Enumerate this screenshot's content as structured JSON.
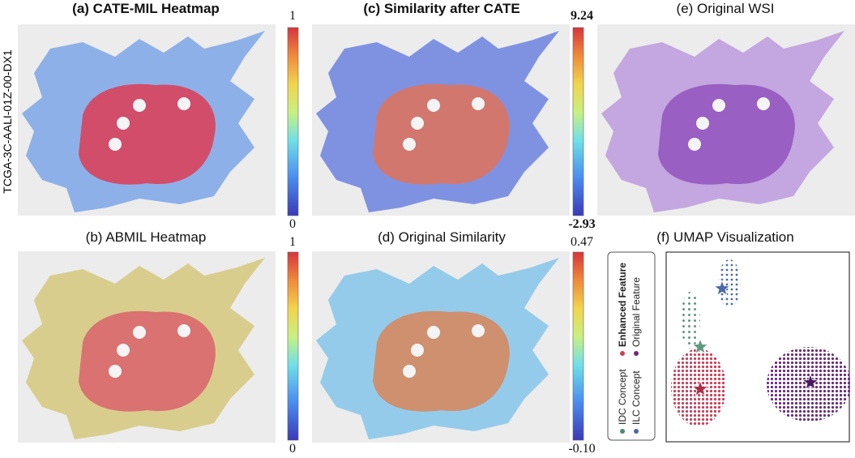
{
  "side_label": "TCGA-3C-AALI-01Z-00-DX1",
  "panels": [
    {
      "title": "(a) CATE-MIL Heatmap",
      "colorbar": {
        "max": "1",
        "min": "0"
      }
    },
    {
      "title": "(c) Similarity after CATE",
      "colorbar": {
        "max": "9.24",
        "min": "-2.93"
      }
    },
    {
      "title": "(e) Original WSI"
    },
    {
      "title": "(b) ABMIL Heatmap",
      "colorbar": {
        "max": "1",
        "min": "0"
      }
    },
    {
      "title": "(d) Original Similarity",
      "colorbar": {
        "max": "0.47",
        "min": "-0.10"
      }
    }
  ],
  "umap": {
    "title": "(f) UMAP Visualization",
    "legend": [
      "Enhanced Feature",
      "Original Feature",
      "IDC Concept",
      "ILC Concept"
    ]
  }
}
